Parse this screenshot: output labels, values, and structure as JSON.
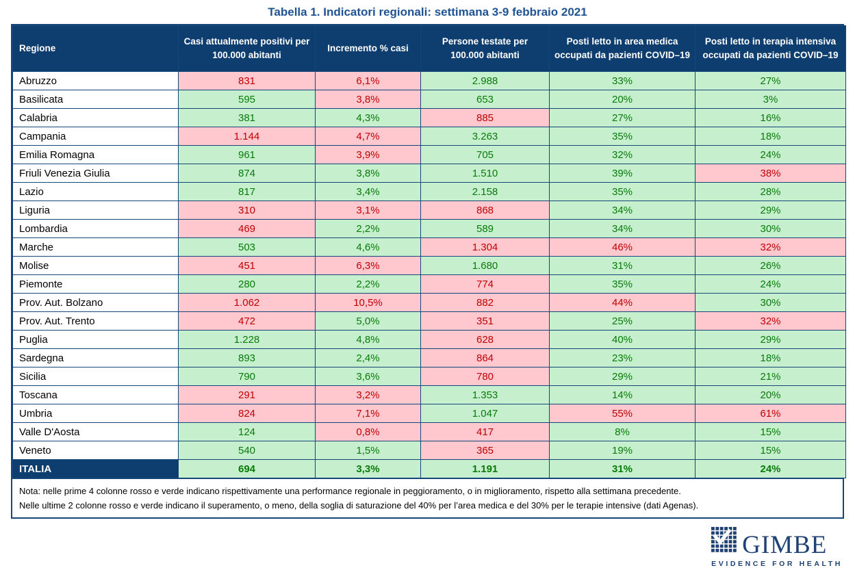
{
  "title": "Tabella 1. Indicatori regionali: settimana 3-9 febbraio 2021",
  "colors": {
    "header_bg": "#0E3E6F",
    "border_color": "#16457A",
    "title_color": "#1F5394",
    "good_bg": "#C6EFCE",
    "good_text": "#077A07",
    "bad_bg": "#FFC7CE",
    "bad_text": "#C00000",
    "logo_color": "#1F4173"
  },
  "chart_data": {
    "type": "table",
    "title": "Tabella 1. Indicatori regionali: settimana 3-9 febbraio 2021",
    "legend_note": "rosso = peggioramento / superamento soglia, verde = miglioramento / sotto soglia",
    "columns": [
      "Regione",
      "Casi attualmente positivi per 100.000 abitanti",
      "Incremento % casi",
      "Persone testate per 100.000 abitanti",
      "Posti letto in area medica occupati da pazienti COVID–19",
      "Posti letto in terapia intensiva occupati da pazienti COVID–19"
    ],
    "rows": [
      {
        "name": "Abruzzo",
        "values": [
          "831",
          "6,1%",
          "2.988",
          "33%",
          "27%"
        ],
        "status": [
          "bad",
          "bad",
          "good",
          "good",
          "good"
        ]
      },
      {
        "name": "Basilicata",
        "values": [
          "595",
          "3,8%",
          "653",
          "20%",
          "3%"
        ],
        "status": [
          "good",
          "bad",
          "good",
          "good",
          "good"
        ]
      },
      {
        "name": "Calabria",
        "values": [
          "381",
          "4,3%",
          "885",
          "27%",
          "16%"
        ],
        "status": [
          "good",
          "good",
          "bad",
          "good",
          "good"
        ]
      },
      {
        "name": "Campania",
        "values": [
          "1.144",
          "4,7%",
          "3.263",
          "35%",
          "18%"
        ],
        "status": [
          "bad",
          "bad",
          "good",
          "good",
          "good"
        ]
      },
      {
        "name": "Emilia Romagna",
        "values": [
          "961",
          "3,9%",
          "705",
          "32%",
          "24%"
        ],
        "status": [
          "good",
          "bad",
          "good",
          "good",
          "good"
        ]
      },
      {
        "name": "Friuli Venezia Giulia",
        "values": [
          "874",
          "3,8%",
          "1.510",
          "39%",
          "38%"
        ],
        "status": [
          "good",
          "good",
          "good",
          "good",
          "bad"
        ]
      },
      {
        "name": "Lazio",
        "values": [
          "817",
          "3,4%",
          "2.158",
          "35%",
          "28%"
        ],
        "status": [
          "good",
          "good",
          "good",
          "good",
          "good"
        ]
      },
      {
        "name": "Liguria",
        "values": [
          "310",
          "3,1%",
          "868",
          "34%",
          "29%"
        ],
        "status": [
          "bad",
          "bad",
          "bad",
          "good",
          "good"
        ]
      },
      {
        "name": "Lombardia",
        "values": [
          "469",
          "2,2%",
          "589",
          "34%",
          "30%"
        ],
        "status": [
          "bad",
          "good",
          "good",
          "good",
          "good"
        ]
      },
      {
        "name": "Marche",
        "values": [
          "503",
          "4,6%",
          "1.304",
          "46%",
          "32%"
        ],
        "status": [
          "good",
          "good",
          "bad",
          "bad",
          "bad"
        ]
      },
      {
        "name": "Molise",
        "values": [
          "451",
          "6,3%",
          "1.680",
          "31%",
          "26%"
        ],
        "status": [
          "bad",
          "bad",
          "good",
          "good",
          "good"
        ]
      },
      {
        "name": "Piemonte",
        "values": [
          "280",
          "2,2%",
          "774",
          "35%",
          "24%"
        ],
        "status": [
          "good",
          "good",
          "bad",
          "good",
          "good"
        ]
      },
      {
        "name": "Prov. Aut. Bolzano",
        "values": [
          "1.062",
          "10,5%",
          "882",
          "44%",
          "30%"
        ],
        "status": [
          "bad",
          "bad",
          "bad",
          "bad",
          "good"
        ]
      },
      {
        "name": "Prov. Aut. Trento",
        "values": [
          "472",
          "5,0%",
          "351",
          "25%",
          "32%"
        ],
        "status": [
          "bad",
          "good",
          "bad",
          "good",
          "bad"
        ]
      },
      {
        "name": "Puglia",
        "values": [
          "1.228",
          "4,8%",
          "628",
          "40%",
          "29%"
        ],
        "status": [
          "good",
          "good",
          "bad",
          "good",
          "good"
        ]
      },
      {
        "name": "Sardegna",
        "values": [
          "893",
          "2,4%",
          "864",
          "23%",
          "18%"
        ],
        "status": [
          "good",
          "good",
          "bad",
          "good",
          "good"
        ]
      },
      {
        "name": "Sicilia",
        "values": [
          "790",
          "3,6%",
          "780",
          "29%",
          "21%"
        ],
        "status": [
          "good",
          "good",
          "bad",
          "good",
          "good"
        ]
      },
      {
        "name": "Toscana",
        "values": [
          "291",
          "3,2%",
          "1.353",
          "14%",
          "20%"
        ],
        "status": [
          "bad",
          "bad",
          "good",
          "good",
          "good"
        ]
      },
      {
        "name": "Umbria",
        "values": [
          "824",
          "7,1%",
          "1.047",
          "55%",
          "61%"
        ],
        "status": [
          "bad",
          "bad",
          "good",
          "bad",
          "bad"
        ]
      },
      {
        "name": "Valle D'Aosta",
        "values": [
          "124",
          "0,8%",
          "417",
          "8%",
          "15%"
        ],
        "status": [
          "good",
          "bad",
          "bad",
          "good",
          "good"
        ]
      },
      {
        "name": "Veneto",
        "values": [
          "540",
          "1,5%",
          "365",
          "19%",
          "15%"
        ],
        "status": [
          "good",
          "good",
          "bad",
          "good",
          "good"
        ]
      },
      {
        "name": "ITALIA",
        "total": true,
        "values": [
          "694",
          "3,3%",
          "1.191",
          "31%",
          "24%"
        ],
        "status": [
          "good",
          "good",
          "good",
          "good",
          "good"
        ]
      }
    ]
  },
  "note": {
    "line1": "Nota: nelle prime 4 colonne rosso e verde indicano rispettivamente una performance regionale in peggioramento, o in miglioramento, rispetto alla settimana precedente.",
    "line2": "Nelle ultime 2 colonne rosso e verde indicano il superamento, o meno, della soglia di saturazione del 40% per l’area medica e del 30% per le terapie intensive (dati Agenas)."
  },
  "logo": {
    "name": "GIMBE",
    "tagline": "EVIDENCE FOR HEALTH"
  }
}
